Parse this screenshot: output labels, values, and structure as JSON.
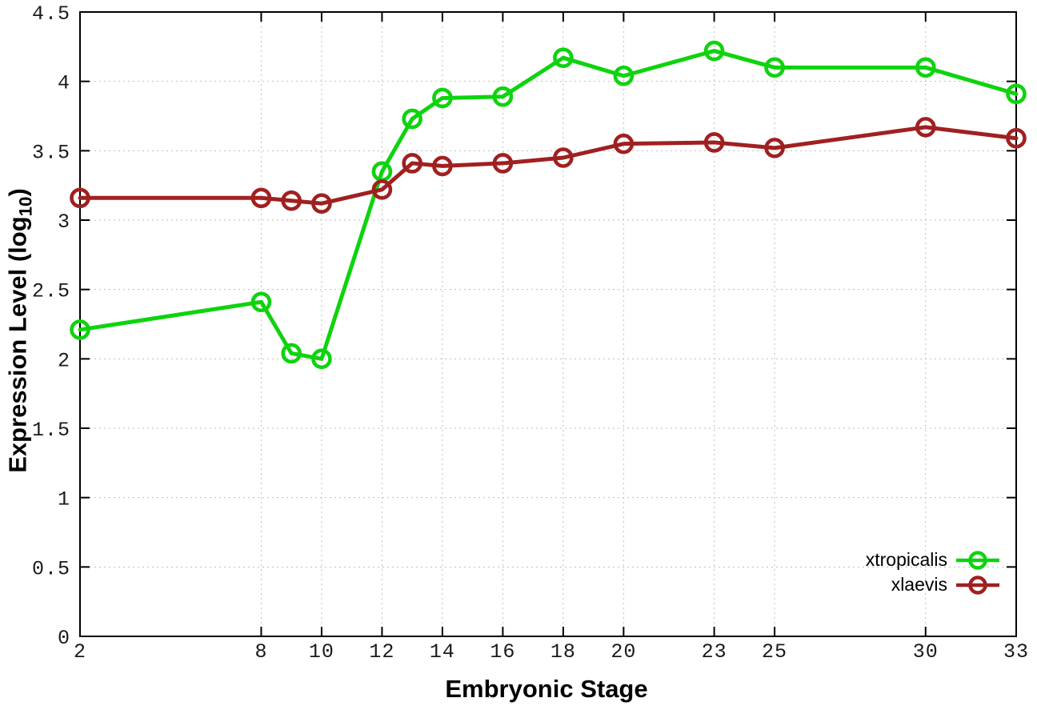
{
  "chart_data": {
    "type": "line",
    "title": "",
    "xlabel": "Embryonic Stage",
    "ylabel": "Expression Level (log10)",
    "ylabel_parts": {
      "main": "Expression Level (log",
      "sub": "10",
      "close": ")"
    },
    "xlim": [
      2,
      33
    ],
    "ylim": [
      0,
      4.5
    ],
    "x_ticks": [
      2,
      8,
      10,
      12,
      14,
      16,
      18,
      20,
      23,
      25,
      30,
      33
    ],
    "y_ticks": [
      0,
      0.5,
      1,
      1.5,
      2,
      2.5,
      3,
      3.5,
      4,
      4.5
    ],
    "grid": true,
    "legend_position": "inside-bottom-right",
    "x": [
      2,
      8,
      9,
      10,
      12,
      13,
      14,
      16,
      18,
      20,
      23,
      25,
      30,
      33
    ],
    "series": [
      {
        "name": "xtropicalis",
        "color": "#0ed30e",
        "marker": "open-circle",
        "values": [
          2.21,
          2.41,
          2.04,
          2.0,
          3.35,
          3.73,
          3.88,
          3.89,
          4.17,
          4.04,
          4.22,
          4.1,
          4.1,
          3.91
        ]
      },
      {
        "name": "xlaevis",
        "color": "#a02020",
        "marker": "open-circle",
        "values": [
          3.16,
          3.16,
          3.14,
          3.12,
          3.22,
          3.41,
          3.39,
          3.41,
          3.45,
          3.55,
          3.56,
          3.52,
          3.67,
          3.59
        ]
      }
    ],
    "colors": {
      "grid": "#bfbfbf",
      "axis": "#000000",
      "tick_label": "#1a1a1a"
    }
  }
}
